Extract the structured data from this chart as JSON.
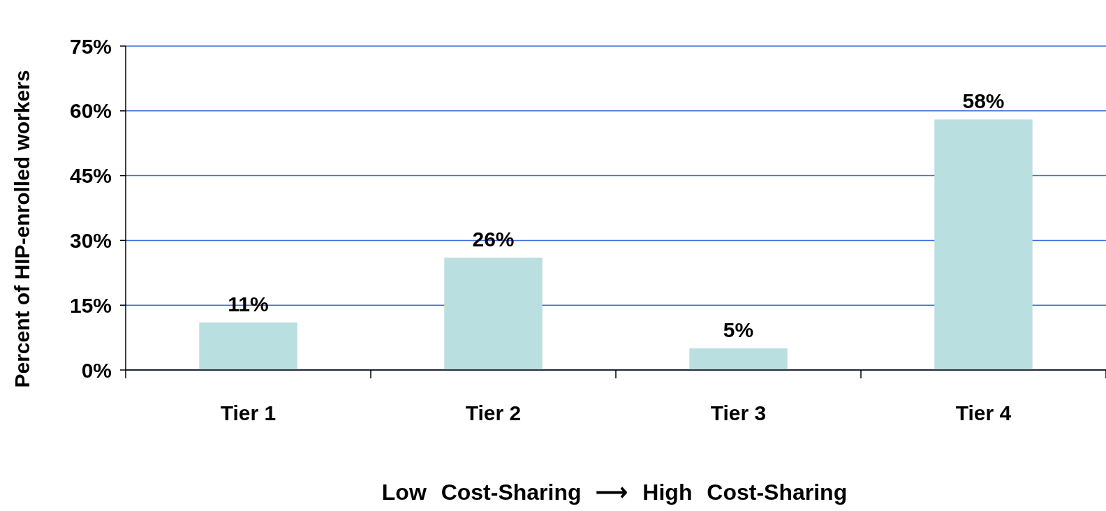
{
  "chart_data": {
    "type": "bar",
    "categories": [
      "Tier 1",
      "Tier 2",
      "Tier 3",
      "Tier 4"
    ],
    "values": [
      11,
      26,
      5,
      58
    ],
    "value_labels": [
      "11%",
      "26%",
      "5%",
      "58%"
    ],
    "color": "#b9dfe0",
    "ylabel": "Percent of HIP-enrolled workers",
    "xlabel": "Low Cost-Sharing ⟶ High Cost-Sharing",
    "ylim": [
      0,
      75
    ],
    "yticks": [
      {
        "value": 0,
        "label": "0%"
      },
      {
        "value": 15,
        "label": "15%"
      },
      {
        "value": 30,
        "label": "30%"
      },
      {
        "value": 45,
        "label": "45%"
      },
      {
        "value": 60,
        "label": "60%"
      },
      {
        "value": 75,
        "label": "75%"
      }
    ],
    "grid": "y"
  }
}
